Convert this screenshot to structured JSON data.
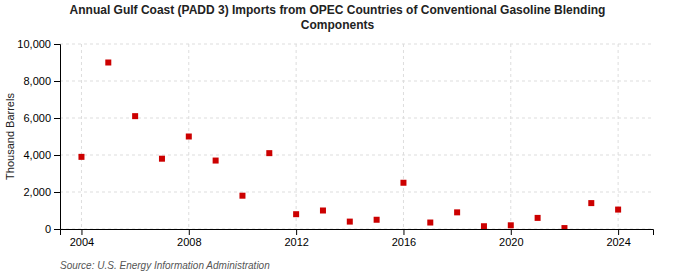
{
  "chart_data": {
    "type": "scatter",
    "title": "Annual Gulf Coast (PADD 3) Imports from OPEC Countries of Conventional Gasoline Blending\nComponents",
    "ylabel": "Thousand Barrels",
    "source": "Source: U.S. Energy Information Administration",
    "x": [
      2004,
      2005,
      2006,
      2007,
      2008,
      2009,
      2010,
      2011,
      2012,
      2013,
      2014,
      2015,
      2016,
      2017,
      2018,
      2019,
      2020,
      2021,
      2022,
      2023,
      2024
    ],
    "values": [
      3900,
      9000,
      6100,
      3800,
      5000,
      3700,
      1800,
      4100,
      800,
      1000,
      400,
      500,
      2500,
      350,
      900,
      150,
      200,
      600,
      50,
      1400,
      1050
    ],
    "color": "#cc0000",
    "marker": "square",
    "xlim": [
      2003.2,
      2025.3
    ],
    "xticks": [
      2004,
      2008,
      2012,
      2016,
      2020,
      2024
    ],
    "ylim": [
      0,
      10000
    ],
    "yticks": [
      0,
      {
        "value": 2000,
        "label": "2,000"
      },
      {
        "value": 4000,
        "label": "4,000"
      },
      {
        "value": 6000,
        "label": "6,000"
      },
      {
        "value": 8000,
        "label": "8,000"
      },
      {
        "value": 10000,
        "label": "10,000"
      }
    ],
    "grid": true
  }
}
